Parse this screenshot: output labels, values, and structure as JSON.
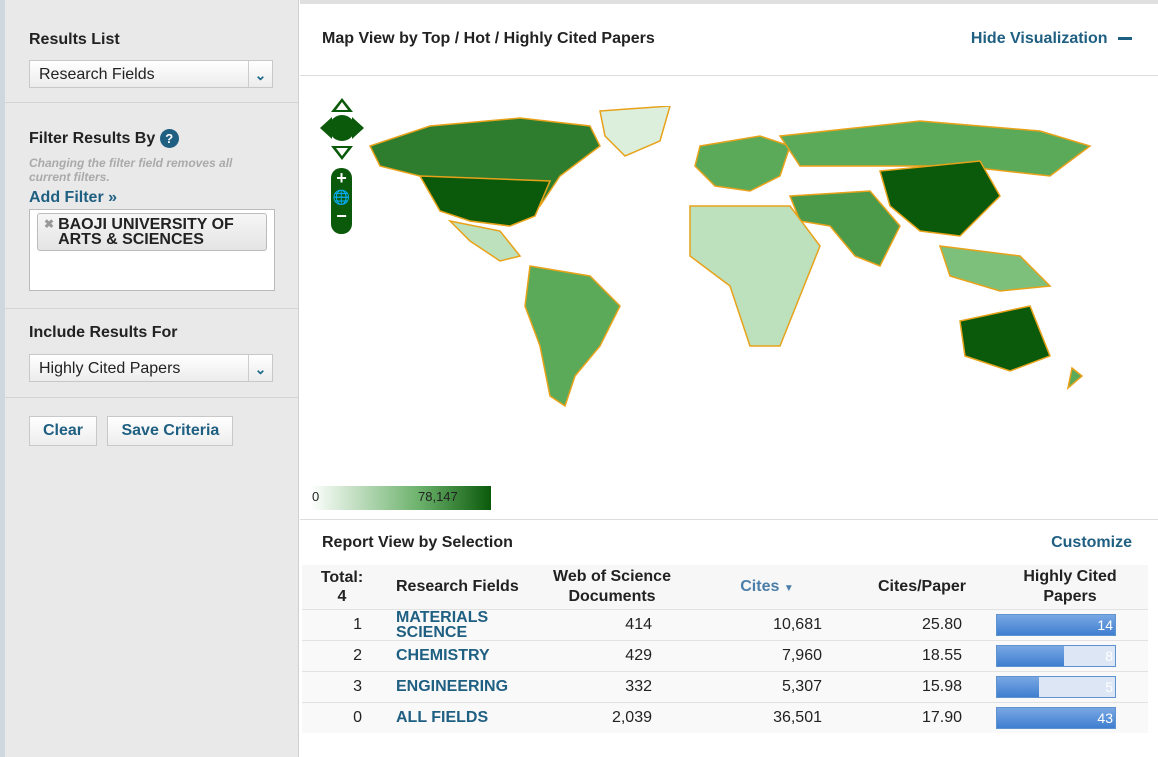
{
  "sidebar": {
    "results_list": {
      "label": "Results List",
      "selected": "Research Fields"
    },
    "filter": {
      "label": "Filter Results By",
      "help_icon": "question-icon",
      "note": "Changing the filter field removes all current filters.",
      "add_filter": "Add Filter »",
      "tags": [
        "BAOJI UNIVERSITY OF ARTS & SCIENCES"
      ]
    },
    "include": {
      "label": "Include Results For",
      "selected": "Highly Cited Papers"
    },
    "clear": "Clear",
    "save": "Save Criteria"
  },
  "map": {
    "title": "Map View by Top / Hot / Highly Cited Papers",
    "hide": "Hide Visualization",
    "legend_min": "0",
    "legend_max": "78,147",
    "colors": {
      "low": "#ffffff",
      "high": "#0b5a0b",
      "border": "#e8a21a"
    }
  },
  "report": {
    "title": "Report View by Selection",
    "customize": "Customize",
    "columns": {
      "total": "Total:",
      "total_count": "4",
      "field": "Research Fields",
      "docs_1": "Web of Science",
      "docs_2": "Documents",
      "cites": "Cites",
      "cpp": "Cites/Paper",
      "hcp_1": "Highly Cited",
      "hcp_2": "Papers"
    },
    "rows": [
      {
        "rank": "1",
        "field": "MATERIALS SCIENCE",
        "docs": "414",
        "cites": "10,681",
        "cpp": "25.80",
        "hcp": "14",
        "fill": 1.0
      },
      {
        "rank": "2",
        "field": "CHEMISTRY",
        "docs": "429",
        "cites": "7,960",
        "cpp": "18.55",
        "hcp": "8",
        "fill": 0.57
      },
      {
        "rank": "3",
        "field": "ENGINEERING",
        "docs": "332",
        "cites": "5,307",
        "cpp": "15.98",
        "hcp": "5",
        "fill": 0.36
      },
      {
        "rank": "0",
        "field": "ALL FIELDS",
        "docs": "2,039",
        "cites": "36,501",
        "cpp": "17.90",
        "hcp": "43",
        "fill": 1.0
      }
    ]
  }
}
